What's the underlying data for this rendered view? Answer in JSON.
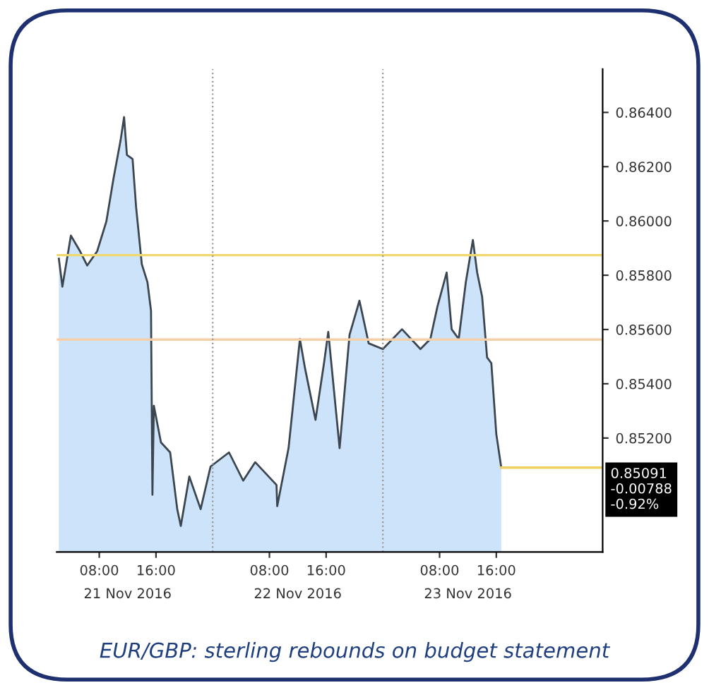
{
  "chart_data": {
    "type": "area",
    "x": [
      "2016-11-21T02:18",
      "2016-11-21T02:48",
      "2016-11-21T04:00",
      "2016-11-21T05:18",
      "2016-11-21T06:18",
      "2016-11-21T07:42",
      "2016-11-21T09:00",
      "2016-11-21T10:00",
      "2016-11-21T11:00",
      "2016-11-21T11:30",
      "2016-11-21T11:54",
      "2016-11-21T12:42",
      "2016-11-21T13:12",
      "2016-11-21T14:00",
      "2016-11-21T14:48",
      "2016-11-21T15:18",
      "2016-11-21T15:30",
      "2016-11-21T15:42",
      "2016-11-21T16:42",
      "2016-11-21T18:00",
      "2016-11-21T19:00",
      "2016-11-21T19:30",
      "2016-11-21T20:42",
      "2016-11-21T22:18",
      "2016-11-21T23:42",
      "2016-11-22T02:18",
      "2016-11-22T04:18",
      "2016-11-22T06:00",
      "2016-11-22T09:00",
      "2016-11-22T09:06",
      "2016-11-22T10:42",
      "2016-11-22T12:18",
      "2016-11-22T13:00",
      "2016-11-22T14:30",
      "2016-11-22T15:42",
      "2016-11-22T16:18",
      "2016-11-22T17:54",
      "2016-11-22T19:18",
      "2016-11-22T20:42",
      "2016-11-22T22:00",
      "2016-11-23T00:00",
      "2016-11-23T02:42",
      "2016-11-23T05:18",
      "2016-11-23T06:42",
      "2016-11-23T07:42",
      "2016-11-23T09:00",
      "2016-11-23T09:42",
      "2016-11-23T10:42",
      "2016-11-23T11:42",
      "2016-11-23T12:42",
      "2016-11-23T13:18",
      "2016-11-23T14:00",
      "2016-11-23T14:42",
      "2016-11-23T15:18",
      "2016-11-23T16:00",
      "2016-11-23T16:42"
    ],
    "series": [
      {
        "color": "#3c4650",
        "values": [
          0.85861,
          0.85758,
          0.85946,
          0.85888,
          0.85836,
          0.85888,
          0.85998,
          0.86155,
          0.86296,
          0.86383,
          0.86243,
          0.86228,
          0.8605,
          0.85841,
          0.85774,
          0.85669,
          0.84991,
          0.85319,
          0.85184,
          0.85147,
          0.84938,
          0.84876,
          0.85058,
          0.84938,
          0.85095,
          0.85147,
          0.85043,
          0.85111,
          0.85027,
          0.84949,
          0.85163,
          0.85565,
          0.8546,
          0.85267,
          0.85476,
          0.85591,
          0.85163,
          0.8558,
          0.85706,
          0.85549,
          0.85528,
          0.85601,
          0.85528,
          0.85565,
          0.85685,
          0.8581,
          0.85601,
          0.85565,
          0.85774,
          0.8593,
          0.8581,
          0.85721,
          0.85497,
          0.85476,
          0.85215,
          0.85091
        ]
      }
    ],
    "xlim": [
      "2016-11-21T02:00",
      "2016-11-24T07:00"
    ],
    "xticks": [
      {
        "value": "2016-11-21T08:00",
        "label": "08:00"
      },
      {
        "value": "2016-11-21T16:00",
        "label": "16:00"
      },
      {
        "value": "2016-11-22T08:00",
        "label": "08:00"
      },
      {
        "value": "2016-11-22T16:00",
        "label": "16:00"
      },
      {
        "value": "2016-11-23T08:00",
        "label": "08:00"
      },
      {
        "value": "2016-11-23T16:00",
        "label": "16:00"
      }
    ],
    "x2lim": [
      "2016-11-21T02:00",
      "2016-11-24T07:00"
    ],
    "x2ticks": [
      {
        "value": "2016-11-21T12:00",
        "label": "21 Nov 2016"
      },
      {
        "value": "2016-11-22T12:00",
        "label": "22 Nov 2016"
      },
      {
        "value": "2016-11-23T12:00",
        "label": "23 Nov 2016"
      }
    ],
    "ylim": [
      0.8478,
      0.8656
    ],
    "yticks": [
      {
        "value": 0.852,
        "label": "0.85200"
      },
      {
        "value": 0.854,
        "label": "0.85400"
      },
      {
        "value": 0.856,
        "label": "0.85600"
      },
      {
        "value": 0.858,
        "label": "0.85800"
      },
      {
        "value": 0.86,
        "label": "0.86000"
      },
      {
        "value": 0.862,
        "label": "0.86200"
      },
      {
        "value": 0.864,
        "label": "0.86400"
      }
    ],
    "ref_lines": [
      {
        "axis": "y",
        "value": 0.85874,
        "color": "#f0d870"
      },
      {
        "axis": "y",
        "value": 0.85563,
        "color": "#f5cfa8"
      },
      {
        "axis": "y",
        "value": 0.85091,
        "color": "#f0d060",
        "label": "0.85091\n-0.00788\n-0.92%"
      },
      {
        "axis": "x",
        "value": "2016-11-22",
        "color": "#999999",
        "line_style": "dotted"
      },
      {
        "axis": "x",
        "value": "2016-11-23",
        "color": "#999999",
        "line_style": "dotted"
      }
    ],
    "annotations": [
      "EUR/GBP: sterling rebounds on budget statement"
    ],
    "grid": false,
    "legend": false,
    "marker": "none",
    "line_style": "solid"
  }
}
